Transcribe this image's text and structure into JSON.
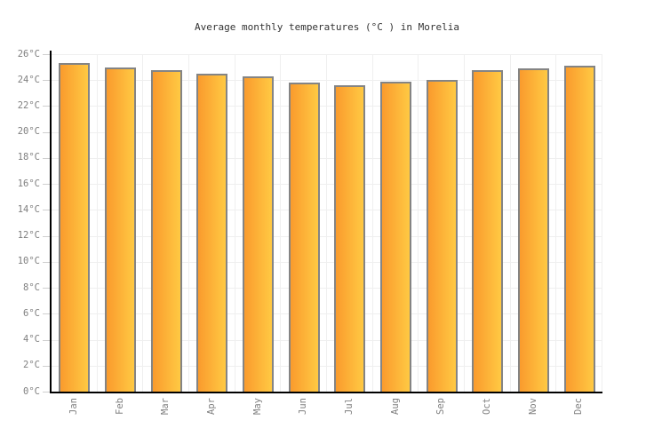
{
  "chart_data": {
    "type": "bar",
    "title": "Average monthly temperatures (°C ) in Morelia",
    "categories": [
      "Jan",
      "Feb",
      "Mar",
      "Apr",
      "May",
      "Jun",
      "Jul",
      "Aug",
      "Sep",
      "Oct",
      "Nov",
      "Dec"
    ],
    "values": [
      25.3,
      25.0,
      24.8,
      24.5,
      24.3,
      23.8,
      23.6,
      23.9,
      24.0,
      24.8,
      24.9,
      25.1
    ],
    "xlabel": "",
    "ylabel": "",
    "ylim": [
      0,
      26
    ],
    "y_tick_step": 2,
    "y_tick_suffix": "°C",
    "y_tick_labels": [
      "0°C",
      "2°C",
      "4°C",
      "6°C",
      "8°C",
      "10°C",
      "12°C",
      "14°C",
      "16°C",
      "18°C",
      "20°C",
      "22°C",
      "24°C",
      "26°C"
    ],
    "grid": "on",
    "legend": "none",
    "colors": {
      "bar_gradient_left": "#FA9B2D",
      "bar_gradient_right": "#FFC943",
      "bar_border": "#848484",
      "axis": "#000000",
      "gridline": "#EFEFEF",
      "tick": "#CFCFCF",
      "axis_label": "#808080",
      "title": "#333333",
      "background": "#FFFFFF"
    }
  }
}
